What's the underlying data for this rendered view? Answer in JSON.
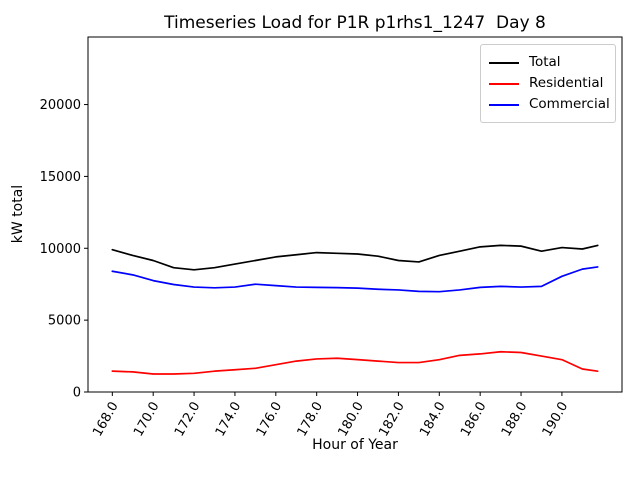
{
  "window": {
    "background_color": "#ffffff"
  },
  "chart_data": {
    "type": "line",
    "title": "Timeseries Load for P1R p1rhs1_1247  Day 8",
    "xlabel": "Hour of Year",
    "ylabel": "kW total",
    "xlim": [
      166.81,
      192.94
    ],
    "ylim": [
      0,
      24700
    ],
    "grid": false,
    "legend_position": "upper right",
    "x_ticks": [
      168,
      170,
      172,
      174,
      176,
      178,
      180,
      182,
      184,
      186,
      188,
      190
    ],
    "x_tick_labels": [
      "168.0",
      "170.0",
      "172.0",
      "174.0",
      "176.0",
      "178.0",
      "180.0",
      "182.0",
      "184.0",
      "186.0",
      "188.0",
      "190.0"
    ],
    "x_tick_rotation_deg": 60,
    "y_ticks": [
      0,
      5000,
      10000,
      15000,
      20000
    ],
    "y_tick_labels": [
      "0",
      "5000",
      "10000",
      "15000",
      "20000"
    ],
    "x": [
      168,
      169,
      170,
      171,
      172,
      173,
      174,
      175,
      176,
      177,
      178,
      179,
      180,
      181,
      182,
      183,
      184,
      185,
      186,
      187,
      188,
      189,
      190,
      191,
      191.75
    ],
    "series": [
      {
        "name": "Total",
        "color": "#000000",
        "values": [
          9900,
          9500,
          9150,
          8650,
          8500,
          8650,
          8900,
          9150,
          9400,
          9550,
          9700,
          9650,
          9600,
          9450,
          9150,
          9050,
          9500,
          9800,
          10100,
          10200,
          10150,
          9800,
          10050,
          9950,
          10200
        ]
      },
      {
        "name": "Residential",
        "color": "#ff0000",
        "values": [
          1450,
          1400,
          1250,
          1250,
          1300,
          1450,
          1550,
          1650,
          1900,
          2150,
          2300,
          2350,
          2250,
          2150,
          2050,
          2050,
          2250,
          2550,
          2650,
          2800,
          2750,
          2500,
          2250,
          1600,
          1450
        ]
      },
      {
        "name": "Commercial",
        "color": "#0000ff",
        "values": [
          8400,
          8150,
          7750,
          7480,
          7300,
          7250,
          7300,
          7500,
          7400,
          7300,
          7280,
          7260,
          7230,
          7150,
          7100,
          7000,
          6980,
          7100,
          7280,
          7350,
          7300,
          7350,
          8050,
          8550,
          8700
        ]
      }
    ],
    "axes_color": "#000000",
    "legend_border_color": "#cccccc"
  }
}
